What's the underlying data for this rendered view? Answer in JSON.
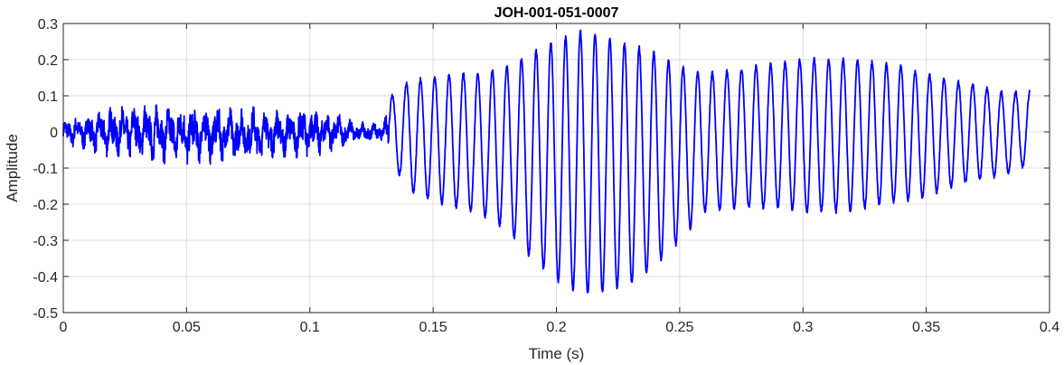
{
  "chart_data": {
    "type": "line",
    "title": "JOH-001-051-0007",
    "xlabel": "Time (s)",
    "ylabel": "Amplitude",
    "xlim": [
      0,
      0.4
    ],
    "ylim": [
      -0.5,
      0.3
    ],
    "x_ticks": [
      0,
      0.05,
      0.1,
      0.15,
      0.2,
      0.25,
      0.3,
      0.35,
      0.4
    ],
    "x_tick_labels": [
      "0",
      "0.05",
      "0.1",
      "0.15",
      "0.2",
      "0.25",
      "0.3",
      "0.35",
      "0.4"
    ],
    "y_ticks": [
      -0.5,
      -0.4,
      -0.3,
      -0.2,
      -0.1,
      0,
      0.1,
      0.2,
      0.3
    ],
    "y_tick_labels": [
      "-0.5",
      "-0.4",
      "-0.3",
      "-0.2",
      "-0.1",
      "0",
      "0.1",
      "0.2",
      "0.3"
    ],
    "grid": true,
    "series": [
      {
        "color": "#0000ff",
        "duration": 0.392,
        "noise_segment": {
          "start": 0,
          "end": 0.132
        },
        "upper_envelope": [
          [
            0.0,
            0.04
          ],
          [
            0.01,
            0.06
          ],
          [
            0.02,
            0.08
          ],
          [
            0.03,
            0.09
          ],
          [
            0.05,
            0.09
          ],
          [
            0.07,
            0.08
          ],
          [
            0.09,
            0.07
          ],
          [
            0.1,
            0.08
          ],
          [
            0.11,
            0.06
          ],
          [
            0.12,
            0.03
          ],
          [
            0.13,
            0.03
          ],
          [
            0.133,
            0.1
          ],
          [
            0.14,
            0.14
          ],
          [
            0.15,
            0.15
          ],
          [
            0.16,
            0.16
          ],
          [
            0.17,
            0.16
          ],
          [
            0.18,
            0.18
          ],
          [
            0.19,
            0.22
          ],
          [
            0.2,
            0.25
          ],
          [
            0.21,
            0.28
          ],
          [
            0.22,
            0.26
          ],
          [
            0.23,
            0.24
          ],
          [
            0.24,
            0.22
          ],
          [
            0.25,
            0.18
          ],
          [
            0.26,
            0.16
          ],
          [
            0.27,
            0.17
          ],
          [
            0.28,
            0.18
          ],
          [
            0.29,
            0.19
          ],
          [
            0.3,
            0.2
          ],
          [
            0.31,
            0.2
          ],
          [
            0.32,
            0.2
          ],
          [
            0.33,
            0.19
          ],
          [
            0.34,
            0.18
          ],
          [
            0.35,
            0.16
          ],
          [
            0.36,
            0.14
          ],
          [
            0.37,
            0.13
          ],
          [
            0.38,
            0.11
          ],
          [
            0.392,
            0.11
          ]
        ],
        "lower_envelope": [
          [
            0.0,
            -0.04
          ],
          [
            0.01,
            -0.06
          ],
          [
            0.02,
            -0.08
          ],
          [
            0.03,
            -0.09
          ],
          [
            0.05,
            -0.1
          ],
          [
            0.07,
            -0.09
          ],
          [
            0.09,
            -0.08
          ],
          [
            0.1,
            -0.08
          ],
          [
            0.11,
            -0.06
          ],
          [
            0.12,
            -0.03
          ],
          [
            0.13,
            -0.03
          ],
          [
            0.133,
            -0.08
          ],
          [
            0.14,
            -0.16
          ],
          [
            0.15,
            -0.19
          ],
          [
            0.16,
            -0.21
          ],
          [
            0.17,
            -0.23
          ],
          [
            0.18,
            -0.27
          ],
          [
            0.19,
            -0.35
          ],
          [
            0.2,
            -0.41
          ],
          [
            0.21,
            -0.45
          ],
          [
            0.22,
            -0.44
          ],
          [
            0.23,
            -0.42
          ],
          [
            0.24,
            -0.37
          ],
          [
            0.25,
            -0.3
          ],
          [
            0.26,
            -0.22
          ],
          [
            0.27,
            -0.21
          ],
          [
            0.28,
            -0.21
          ],
          [
            0.29,
            -0.21
          ],
          [
            0.3,
            -0.22
          ],
          [
            0.31,
            -0.22
          ],
          [
            0.32,
            -0.22
          ],
          [
            0.33,
            -0.2
          ],
          [
            0.34,
            -0.19
          ],
          [
            0.35,
            -0.18
          ],
          [
            0.36,
            -0.15
          ],
          [
            0.37,
            -0.13
          ],
          [
            0.38,
            -0.12
          ],
          [
            0.392,
            -0.09
          ]
        ]
      }
    ]
  }
}
